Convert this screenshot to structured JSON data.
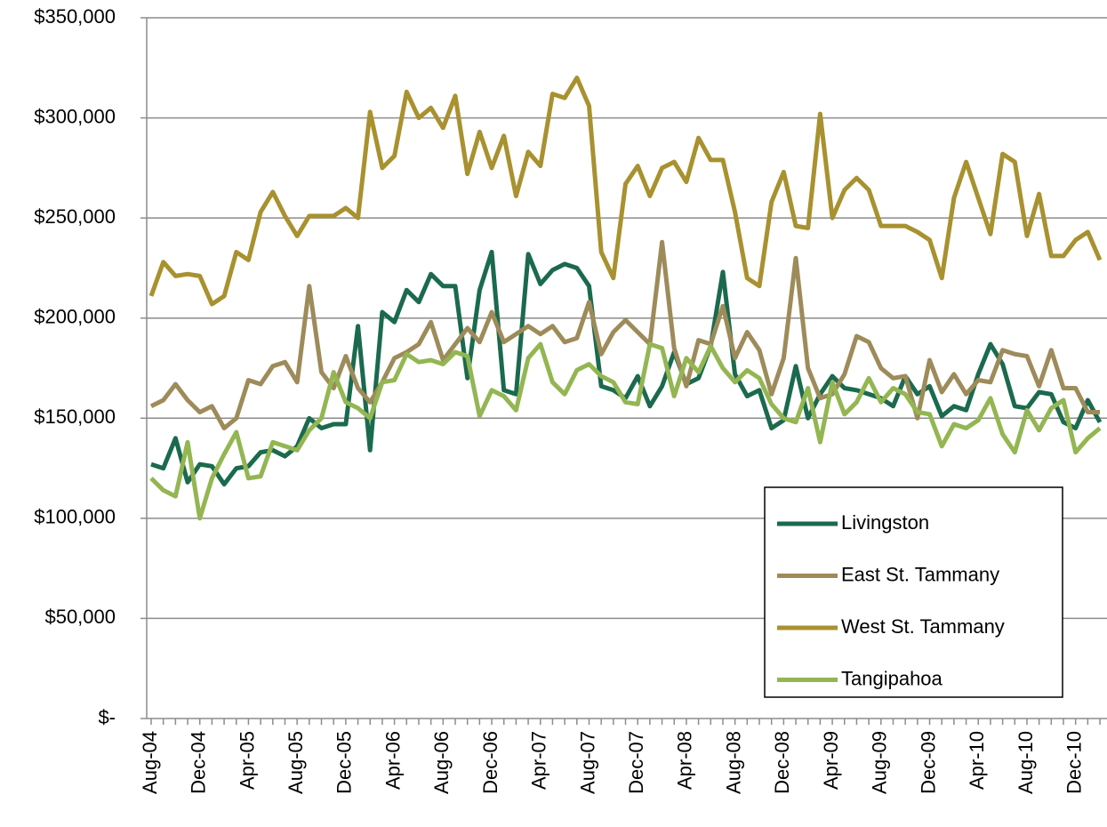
{
  "chart_data": {
    "type": "line",
    "categories": [
      "Aug-04",
      null,
      null,
      null,
      "Dec-04",
      null,
      null,
      null,
      "Apr-05",
      null,
      null,
      null,
      "Aug-05",
      null,
      null,
      null,
      "Dec-05",
      null,
      null,
      null,
      "Apr-06",
      null,
      null,
      null,
      "Aug-06",
      null,
      null,
      null,
      "Dec-06",
      null,
      null,
      null,
      "Apr-07",
      null,
      null,
      null,
      "Aug-07",
      null,
      null,
      null,
      "Dec-07",
      null,
      null,
      null,
      "Apr-08",
      null,
      null,
      null,
      "Aug-08",
      null,
      null,
      null,
      "Dec-08",
      null,
      null,
      null,
      "Apr-09",
      null,
      null,
      null,
      "Aug-09",
      null,
      null,
      null,
      "Dec-09",
      null,
      null,
      null,
      "Apr-10",
      null,
      null,
      null,
      "Aug-10",
      null,
      null,
      null,
      "Dec-10",
      null,
      null
    ],
    "series": [
      {
        "name": "Livingston",
        "color": "#1b6a4e",
        "values": [
          127000,
          125000,
          140000,
          118000,
          127000,
          126000,
          117000,
          125000,
          126000,
          133000,
          134000,
          131000,
          136000,
          150000,
          145000,
          147000,
          147000,
          196000,
          134000,
          203000,
          198000,
          214000,
          208000,
          222000,
          216000,
          216000,
          170000,
          214000,
          233000,
          164000,
          162000,
          232000,
          217000,
          224000,
          227000,
          225000,
          216000,
          166000,
          164000,
          160000,
          171000,
          156000,
          166000,
          183000,
          167000,
          170000,
          186000,
          223000,
          172000,
          161000,
          164000,
          145000,
          149000,
          176000,
          150000,
          162000,
          171000,
          165000,
          164000,
          162000,
          160000,
          156000,
          171000,
          162000,
          166000,
          151000,
          156000,
          154000,
          172000,
          187000,
          177000,
          156000,
          155000,
          163000,
          162000,
          148000,
          145000,
          159000,
          148000
        ]
      },
      {
        "name": "East St. Tammany",
        "color": "#9e8b5a",
        "values": [
          156000,
          159000,
          167000,
          159000,
          153000,
          156000,
          145000,
          150000,
          169000,
          167000,
          176000,
          178000,
          168000,
          216000,
          173000,
          165000,
          181000,
          165000,
          158000,
          168000,
          180000,
          183000,
          187000,
          198000,
          179000,
          187000,
          195000,
          188000,
          203000,
          188000,
          192000,
          196000,
          192000,
          196000,
          188000,
          190000,
          208000,
          182000,
          193000,
          199000,
          193000,
          187000,
          238000,
          185000,
          166000,
          189000,
          187000,
          206000,
          180000,
          193000,
          184000,
          162000,
          180000,
          230000,
          175000,
          160000,
          162000,
          172000,
          191000,
          188000,
          175000,
          170000,
          171000,
          150000,
          179000,
          163000,
          172000,
          162000,
          169000,
          168000,
          184000,
          182000,
          181000,
          166000,
          184000,
          165000,
          165000,
          153000,
          153000
        ]
      },
      {
        "name": "West St. Tammany",
        "color": "#a8912f",
        "values": [
          211000,
          228000,
          221000,
          222000,
          221000,
          207000,
          211000,
          233000,
          229000,
          253000,
          263000,
          251000,
          241000,
          251000,
          251000,
          251000,
          255000,
          250000,
          303000,
          275000,
          281000,
          313000,
          300000,
          305000,
          295000,
          311000,
          272000,
          293000,
          275000,
          291000,
          261000,
          283000,
          276000,
          312000,
          310000,
          320000,
          306000,
          233000,
          220000,
          267000,
          276000,
          261000,
          275000,
          278000,
          268000,
          290000,
          279000,
          279000,
          253000,
          220000,
          216000,
          258000,
          273000,
          246000,
          245000,
          302000,
          250000,
          264000,
          270000,
          264000,
          246000,
          246000,
          246000,
          243000,
          239000,
          220000,
          260000,
          278000,
          260000,
          242000,
          282000,
          278000,
          241000,
          262000,
          231000,
          231000,
          239000,
          243000,
          229000
        ]
      },
      {
        "name": "Tangipahoa",
        "color": "#93b652",
        "values": [
          120000,
          114000,
          111000,
          138000,
          100000,
          120000,
          132000,
          143000,
          120000,
          121000,
          138000,
          136000,
          134000,
          144000,
          150000,
          173000,
          158000,
          155000,
          150000,
          168000,
          169000,
          182000,
          178000,
          179000,
          177000,
          183000,
          181000,
          151000,
          164000,
          161000,
          154000,
          180000,
          187000,
          168000,
          162000,
          174000,
          177000,
          171000,
          168000,
          158000,
          157000,
          187000,
          185000,
          161000,
          180000,
          173000,
          186000,
          175000,
          168000,
          174000,
          170000,
          157000,
          150000,
          148000,
          165000,
          138000,
          168000,
          152000,
          158000,
          170000,
          158000,
          165000,
          162000,
          153000,
          152000,
          136000,
          147000,
          145000,
          149000,
          160000,
          142000,
          133000,
          154000,
          144000,
          155000,
          159000,
          133000,
          140000,
          145000
        ]
      }
    ],
    "ylim": [
      0,
      350000
    ],
    "yticks": [
      {
        "value": 0,
        "label": "$-"
      },
      {
        "value": 50000,
        "label": "$50,000"
      },
      {
        "value": 100000,
        "label": "$100,000"
      },
      {
        "value": 150000,
        "label": "$150,000"
      },
      {
        "value": 200000,
        "label": "$200,000"
      },
      {
        "value": 250000,
        "label": "$250,000"
      },
      {
        "value": 300000,
        "label": "$300,000"
      },
      {
        "value": 350000,
        "label": "$350,000"
      }
    ],
    "grid": true,
    "legend": "lower right"
  }
}
